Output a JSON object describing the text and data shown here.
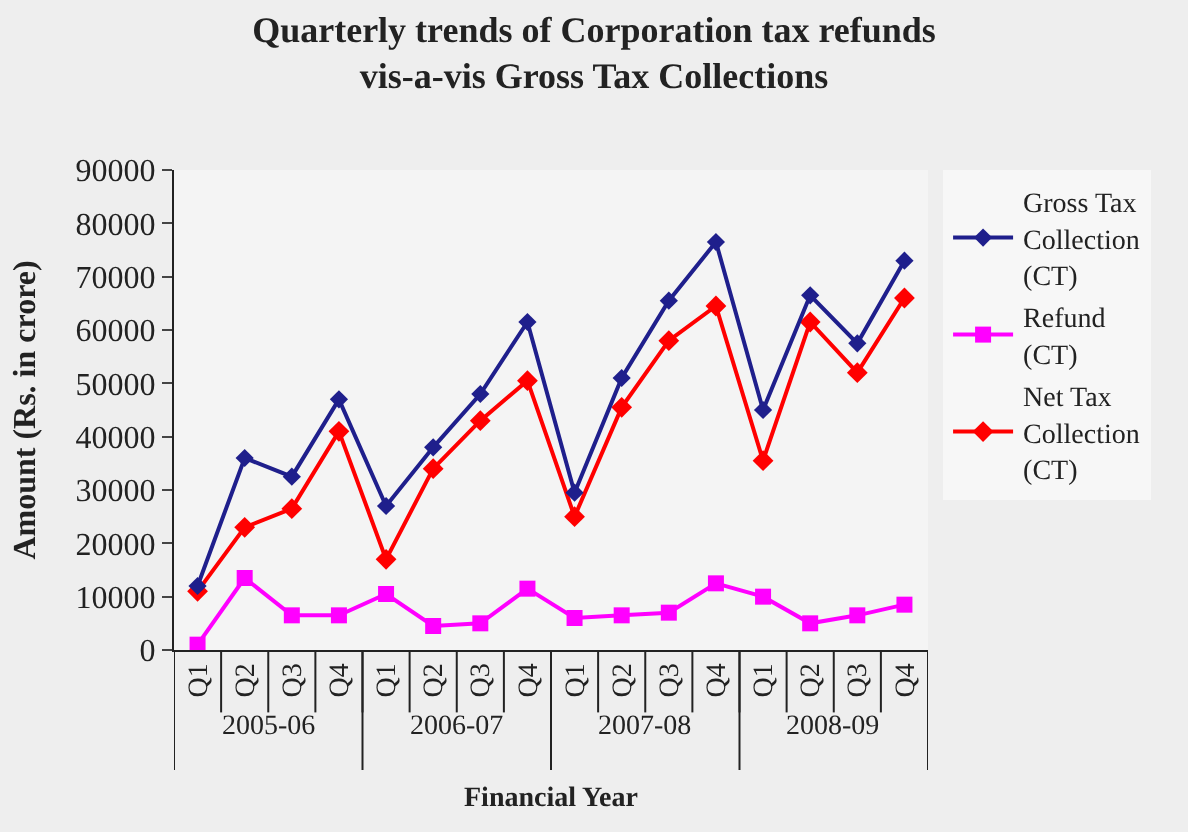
{
  "chart_data": {
    "type": "line",
    "title": "Quarterly trends of Corporation tax refunds vis-a-vis Gross Tax Collections",
    "xlabel": "Financial Year",
    "ylabel": "Amount (Rs. in crore)",
    "categories": [
      "Q1",
      "Q2",
      "Q3",
      "Q4",
      "Q1",
      "Q2",
      "Q3",
      "Q4",
      "Q1",
      "Q2",
      "Q3",
      "Q4",
      "Q1",
      "Q2",
      "Q3",
      "Q4"
    ],
    "annotations": [
      "2005-06",
      "2006-07",
      "2007-08",
      "2008-09"
    ],
    "ylim": [
      0,
      90000
    ],
    "yticks": [
      0,
      10000,
      20000,
      30000,
      40000,
      50000,
      60000,
      70000,
      80000,
      90000
    ],
    "grid": false,
    "legend": "right",
    "series": [
      {
        "name": "Gross Tax Collection (CT)",
        "color": "#1f1f8c",
        "marker": "diamond",
        "values": [
          12000,
          36000,
          32500,
          47000,
          27000,
          38000,
          48000,
          61500,
          29500,
          51000,
          65500,
          76500,
          45000,
          66500,
          57500,
          73000
        ]
      },
      {
        "name": "Refund (CT)",
        "color": "#ff00ff",
        "marker": "square",
        "values": [
          1000,
          13500,
          6500,
          6500,
          10500,
          4500,
          5000,
          11500,
          6000,
          6500,
          7000,
          12500,
          10000,
          5000,
          6500,
          8500
        ]
      },
      {
        "name": "Net Tax Collection (CT)",
        "color": "#ff0000",
        "marker": "diamond",
        "values": [
          11000,
          23000,
          26500,
          41000,
          17000,
          34000,
          43000,
          50500,
          25000,
          45500,
          58000,
          64500,
          35500,
          61500,
          52000,
          66000
        ]
      }
    ]
  }
}
